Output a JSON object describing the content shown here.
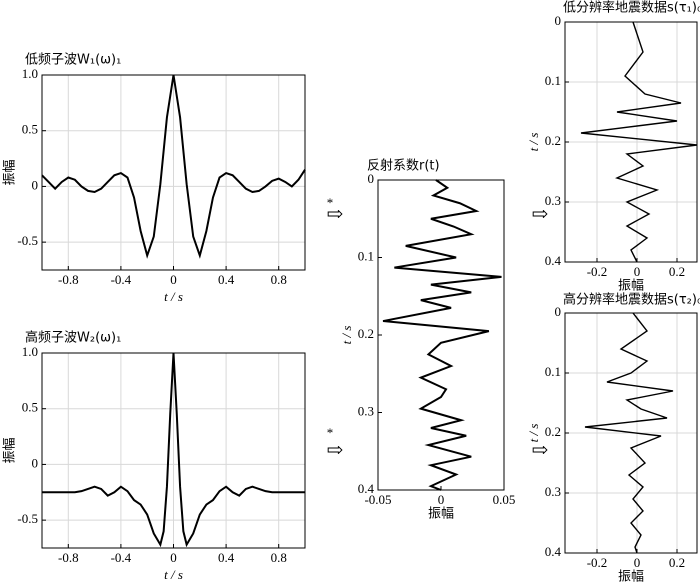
{
  "chart_data": [
    {
      "type": "line",
      "title": "低频子波W₁(ω)₁",
      "x_label": "t / s",
      "y_label": "振幅",
      "x": [
        -1,
        -0.95,
        -0.9,
        -0.85,
        -0.8,
        -0.75,
        -0.7,
        -0.65,
        -0.6,
        -0.55,
        -0.5,
        -0.45,
        -0.4,
        -0.35,
        -0.3,
        -0.25,
        -0.2,
        -0.15,
        -0.1,
        -0.05,
        0,
        0.05,
        0.1,
        0.15,
        0.2,
        0.25,
        0.3,
        0.35,
        0.4,
        0.45,
        0.5,
        0.55,
        0.6,
        0.65,
        0.7,
        0.75,
        0.8,
        0.85,
        0.9,
        0.95,
        1
      ],
      "values": [
        0.1,
        0.04,
        -0.02,
        0.04,
        0.08,
        0.06,
        0.0,
        -0.04,
        -0.05,
        -0.02,
        0.04,
        0.1,
        0.12,
        0.08,
        -0.1,
        -0.4,
        -0.62,
        -0.45,
        0.02,
        0.62,
        1.0,
        0.62,
        0.02,
        -0.45,
        -0.62,
        -0.4,
        -0.1,
        0.08,
        0.12,
        0.1,
        0.04,
        -0.02,
        -0.05,
        -0.04,
        0.0,
        0.05,
        0.07,
        0.04,
        0.0,
        0.06,
        0.15
      ],
      "color": "#000000",
      "xlim": [
        -1,
        1
      ],
      "ylim": [
        -0.75,
        1
      ],
      "xticks": [
        -0.8,
        -0.4,
        0,
        0.4,
        0.8
      ],
      "yticks": [
        -0.5,
        0,
        0.5,
        {
          "value": 1,
          "label": "1.0"
        }
      ],
      "grid": true
    },
    {
      "type": "line",
      "title": "高频子波W₂(ω)₁",
      "x_label": "t / s",
      "y_label": "振幅",
      "x": [
        -1,
        -0.95,
        -0.9,
        -0.85,
        -0.8,
        -0.75,
        -0.7,
        -0.65,
        -0.6,
        -0.55,
        -0.5,
        -0.45,
        -0.4,
        -0.35,
        -0.3,
        -0.25,
        -0.2,
        -0.15,
        -0.1,
        -0.075,
        -0.05,
        -0.025,
        0,
        0.025,
        0.05,
        0.075,
        0.1,
        0.15,
        0.2,
        0.25,
        0.3,
        0.35,
        0.4,
        0.45,
        0.5,
        0.55,
        0.6,
        0.65,
        0.7,
        0.75,
        0.8,
        0.85,
        0.9,
        0.95,
        1
      ],
      "values": [
        -0.25,
        -0.25,
        -0.25,
        -0.25,
        -0.25,
        -0.25,
        -0.24,
        -0.22,
        -0.2,
        -0.22,
        -0.28,
        -0.25,
        -0.2,
        -0.24,
        -0.32,
        -0.36,
        -0.45,
        -0.62,
        -0.72,
        -0.6,
        -0.2,
        0.45,
        1.0,
        0.45,
        -0.2,
        -0.6,
        -0.72,
        -0.62,
        -0.45,
        -0.36,
        -0.32,
        -0.24,
        -0.2,
        -0.25,
        -0.28,
        -0.22,
        -0.2,
        -0.22,
        -0.24,
        -0.25,
        -0.25,
        -0.25,
        -0.25,
        -0.25,
        -0.25
      ],
      "color": "#000000",
      "xlim": [
        -1,
        1
      ],
      "ylim": [
        -0.75,
        1
      ],
      "xticks": [
        -0.8,
        -0.4,
        0,
        0.4,
        0.8
      ],
      "yticks": [
        -0.5,
        0,
        0.5,
        {
          "value": 1,
          "label": "1.0"
        }
      ],
      "grid": true
    },
    {
      "type": "trace",
      "title": "反射系数r(t)",
      "x_label": "振幅",
      "y_label": "t / s",
      "y": [
        0,
        0.01,
        0.02,
        0.03,
        0.04,
        0.05,
        0.06,
        0.07,
        0.085,
        0.1,
        0.113,
        0.125,
        0.135,
        0.145,
        0.155,
        0.165,
        0.182,
        0.195,
        0.21,
        0.225,
        0.24,
        0.255,
        0.27,
        0.28,
        0.295,
        0.31,
        0.32,
        0.33,
        0.342,
        0.357,
        0.368,
        0.38,
        0.395,
        0.4
      ],
      "values": [
        -0.004,
        0.005,
        -0.006,
        0.015,
        0.028,
        -0.008,
        0.01,
        0.024,
        -0.028,
        0.012,
        -0.037,
        0.048,
        -0.008,
        0.024,
        -0.016,
        0.008,
        -0.046,
        0.038,
        0,
        -0.01,
        0.008,
        -0.016,
        0.004,
        0,
        -0.016,
        0.016,
        -0.008,
        0.02,
        -0.01,
        0.024,
        -0.008,
        0.012,
        -0.008,
        0
      ],
      "color": "#000000",
      "xlim": [
        -0.05,
        0.05
      ],
      "ylim": [
        0,
        0.4
      ],
      "y_inverted": true,
      "xticks": [
        -0.05,
        0,
        0.05
      ],
      "yticks": [
        0,
        0.1,
        0.2,
        0.3,
        0.4
      ],
      "grid": false
    },
    {
      "type": "trace",
      "title": "低分辨率地震数据s(τ₁)₀",
      "x_label": "振幅",
      "y_label": "t / s",
      "y": [
        0,
        0.05,
        0.09,
        0.12,
        0.135,
        0.15,
        0.165,
        0.185,
        0.205,
        0.22,
        0.24,
        0.26,
        0.28,
        0.3,
        0.32,
        0.34,
        0.36,
        0.38,
        0.4
      ],
      "values": [
        -0.02,
        0.03,
        -0.06,
        0.04,
        0.22,
        -0.1,
        0.2,
        -0.28,
        0.3,
        -0.05,
        0.03,
        -0.1,
        0.1,
        -0.05,
        0.06,
        -0.05,
        0.05,
        -0.03,
        0
      ],
      "color": "#000000",
      "xlim": [
        -0.36,
        0.3
      ],
      "ylim": [
        0,
        0.4
      ],
      "y_inverted": true,
      "xticks": [
        -0.2,
        0,
        0.2
      ],
      "yticks": [
        0,
        0.1,
        0.2,
        0.3,
        0.4
      ],
      "grid": true
    },
    {
      "type": "trace",
      "title": "高分辨率地震数据s(τ₂)₀",
      "x_label": "振幅",
      "y_label": "t / s",
      "y": [
        0,
        0.03,
        0.06,
        0.08,
        0.1,
        0.115,
        0.13,
        0.145,
        0.16,
        0.175,
        0.19,
        0.205,
        0.225,
        0.25,
        0.27,
        0.29,
        0.31,
        0.33,
        0.35,
        0.37,
        0.39,
        0.4
      ],
      "values": [
        -0.02,
        0.05,
        -0.08,
        0.05,
        -0.03,
        -0.15,
        0.18,
        -0.05,
        0.02,
        0.15,
        -0.26,
        0.12,
        -0.03,
        0.04,
        -0.04,
        0.03,
        -0.02,
        0.03,
        -0.03,
        0.02,
        -0.01,
        0
      ],
      "color": "#000000",
      "xlim": [
        -0.36,
        0.3
      ],
      "ylim": [
        0,
        0.4
      ],
      "y_inverted": true,
      "xticks": [
        -0.2,
        0,
        0.2
      ],
      "yticks": [
        0,
        0.1,
        0.2,
        0.3,
        0.4
      ],
      "grid": true
    }
  ],
  "operators": [
    "*",
    "*"
  ]
}
